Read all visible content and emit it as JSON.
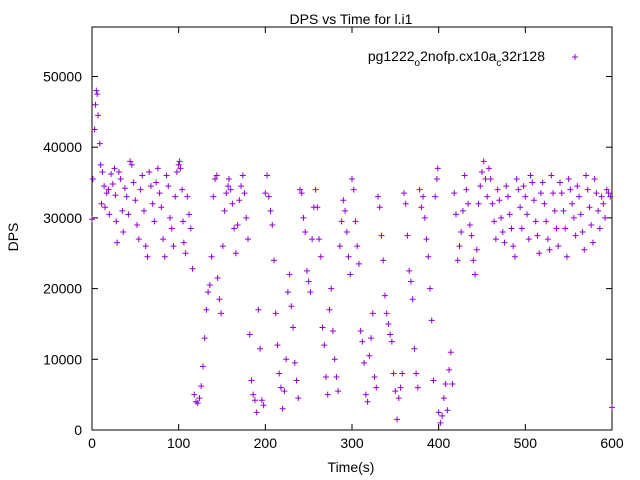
{
  "chart_data": {
    "type": "scatter",
    "title": "DPS vs Time for l.i1",
    "xlabel": "Time(s)",
    "ylabel": "DPS",
    "xlim": [
      0,
      600
    ],
    "ylim": [
      0,
      57000
    ],
    "xticks": [
      0,
      100,
      200,
      300,
      400,
      500,
      600
    ],
    "yticks": [
      0,
      10000,
      20000,
      30000,
      40000,
      50000
    ],
    "legend_position": "top-right",
    "series": [
      {
        "name": "pg1222_o2nofp.cx10a_c32r128",
        "legend_label": {
          "base": "pg1222",
          "sub1": "o",
          "mid": "2nofp.cx10a",
          "sub2": "c",
          "end": "32r128"
        },
        "color": "#9400d3",
        "marker": "+",
        "points": [
          [
            0,
            29800
          ],
          [
            1,
            35500
          ],
          [
            3,
            42500
          ],
          [
            4,
            46000
          ],
          [
            5,
            48000
          ],
          [
            6,
            47500
          ],
          [
            7,
            44500
          ],
          [
            9,
            40500
          ],
          [
            10,
            37500
          ],
          [
            11,
            32000
          ],
          [
            12,
            36500
          ],
          [
            14,
            34500
          ],
          [
            15,
            31500
          ],
          [
            17,
            33500
          ],
          [
            19,
            34000
          ],
          [
            20,
            30500
          ],
          [
            22,
            36200
          ],
          [
            24,
            34800
          ],
          [
            26,
            37000
          ],
          [
            27,
            33200
          ],
          [
            28,
            29500
          ],
          [
            29,
            26500
          ],
          [
            31,
            36500
          ],
          [
            33,
            35500
          ],
          [
            35,
            31000
          ],
          [
            36,
            28000
          ],
          [
            38,
            34200
          ],
          [
            40,
            33000
          ],
          [
            42,
            30500
          ],
          [
            44,
            38000
          ],
          [
            46,
            37500
          ],
          [
            48,
            35000
          ],
          [
            50,
            32500
          ],
          [
            52,
            29000
          ],
          [
            54,
            27000
          ],
          [
            56,
            34000
          ],
          [
            58,
            36000
          ],
          [
            60,
            31000
          ],
          [
            62,
            26000
          ],
          [
            64,
            24500
          ],
          [
            66,
            36500
          ],
          [
            68,
            34500
          ],
          [
            70,
            32000
          ],
          [
            72,
            29500
          ],
          [
            74,
            35000
          ],
          [
            76,
            37000
          ],
          [
            78,
            33500
          ],
          [
            80,
            31500
          ],
          [
            82,
            27000
          ],
          [
            84,
            24500
          ],
          [
            86,
            36000
          ],
          [
            88,
            34500
          ],
          [
            90,
            30000
          ],
          [
            92,
            28500
          ],
          [
            94,
            26000
          ],
          [
            96,
            33000
          ],
          [
            98,
            36500
          ],
          [
            100,
            37500
          ],
          [
            101,
            38000
          ],
          [
            102,
            37000
          ],
          [
            104,
            34000
          ],
          [
            105,
            29500
          ],
          [
            106,
            26500
          ],
          [
            108,
            25000
          ],
          [
            110,
            33000
          ],
          [
            112,
            30500
          ],
          [
            114,
            28500
          ],
          [
            116,
            22800
          ],
          [
            118,
            5000
          ],
          [
            120,
            4000
          ],
          [
            122,
            3800
          ],
          [
            124,
            4500
          ],
          [
            126,
            6200
          ],
          [
            128,
            9000
          ],
          [
            130,
            13000
          ],
          [
            132,
            17000
          ],
          [
            134,
            19500
          ],
          [
            136,
            20500
          ],
          [
            138,
            24500
          ],
          [
            140,
            33000
          ],
          [
            142,
            35500
          ],
          [
            144,
            36000
          ],
          [
            145,
            21500
          ],
          [
            147,
            18500
          ],
          [
            149,
            16500
          ],
          [
            151,
            26000
          ],
          [
            153,
            31000
          ],
          [
            155,
            33500
          ],
          [
            157,
            34500
          ],
          [
            158,
            35500
          ],
          [
            160,
            34000
          ],
          [
            162,
            32000
          ],
          [
            164,
            28500
          ],
          [
            166,
            25000
          ],
          [
            168,
            29000
          ],
          [
            170,
            32500
          ],
          [
            172,
            34500
          ],
          [
            174,
            36000
          ],
          [
            176,
            33500
          ],
          [
            178,
            30000
          ],
          [
            180,
            27000
          ],
          [
            182,
            13500
          ],
          [
            184,
            7000
          ],
          [
            186,
            5000
          ],
          [
            188,
            4200
          ],
          [
            190,
            2500
          ],
          [
            192,
            17000
          ],
          [
            194,
            11500
          ],
          [
            196,
            4200
          ],
          [
            198,
            3500
          ],
          [
            200,
            33500
          ],
          [
            202,
            36000
          ],
          [
            204,
            33000
          ],
          [
            206,
            31000
          ],
          [
            208,
            29000
          ],
          [
            210,
            24000
          ],
          [
            212,
            16500
          ],
          [
            214,
            12000
          ],
          [
            216,
            8000
          ],
          [
            218,
            6000
          ],
          [
            220,
            3000
          ],
          [
            222,
            5500
          ],
          [
            224,
            10000
          ],
          [
            226,
            19500
          ],
          [
            228,
            22000
          ],
          [
            230,
            17500
          ],
          [
            232,
            14500
          ],
          [
            234,
            9500
          ],
          [
            236,
            7000
          ],
          [
            238,
            4500
          ],
          [
            240,
            34000
          ],
          [
            242,
            33500
          ],
          [
            244,
            30000
          ],
          [
            246,
            28000
          ],
          [
            248,
            22500
          ],
          [
            250,
            21000
          ],
          [
            252,
            19500
          ],
          [
            254,
            27000
          ],
          [
            256,
            31500
          ],
          [
            258,
            34000
          ],
          [
            260,
            31500
          ],
          [
            262,
            27000
          ],
          [
            264,
            24500
          ],
          [
            266,
            14500
          ],
          [
            268,
            12000
          ],
          [
            270,
            7500
          ],
          [
            272,
            5000
          ],
          [
            274,
            17000
          ],
          [
            276,
            20000
          ],
          [
            278,
            14000
          ],
          [
            280,
            10000
          ],
          [
            282,
            7500
          ],
          [
            284,
            5500
          ],
          [
            286,
            26000
          ],
          [
            288,
            29500
          ],
          [
            290,
            32500
          ],
          [
            292,
            31000
          ],
          [
            294,
            28000
          ],
          [
            296,
            24500
          ],
          [
            298,
            22000
          ],
          [
            300,
            35500
          ],
          [
            302,
            34000
          ],
          [
            304,
            29500
          ],
          [
            306,
            26000
          ],
          [
            308,
            23500
          ],
          [
            310,
            14000
          ],
          [
            312,
            12500
          ],
          [
            314,
            9500
          ],
          [
            316,
            5000
          ],
          [
            318,
            4000
          ],
          [
            320,
            10500
          ],
          [
            322,
            13000
          ],
          [
            324,
            16500
          ],
          [
            326,
            7500
          ],
          [
            328,
            6000
          ],
          [
            330,
            33000
          ],
          [
            332,
            31500
          ],
          [
            334,
            27500
          ],
          [
            336,
            24000
          ],
          [
            338,
            19000
          ],
          [
            340,
            16500
          ],
          [
            342,
            15000
          ],
          [
            344,
            13500
          ],
          [
            346,
            12500
          ],
          [
            348,
            8000
          ],
          [
            350,
            5500
          ],
          [
            352,
            1500
          ],
          [
            354,
            4500
          ],
          [
            356,
            6000
          ],
          [
            358,
            8000
          ],
          [
            360,
            33500
          ],
          [
            362,
            32000
          ],
          [
            364,
            27500
          ],
          [
            366,
            22500
          ],
          [
            368,
            21000
          ],
          [
            370,
            18500
          ],
          [
            372,
            11500
          ],
          [
            374,
            8000
          ],
          [
            376,
            6000
          ],
          [
            378,
            34000
          ],
          [
            380,
            31500
          ],
          [
            382,
            33000
          ],
          [
            384,
            30000
          ],
          [
            386,
            27000
          ],
          [
            388,
            24500
          ],
          [
            390,
            20000
          ],
          [
            392,
            15500
          ],
          [
            394,
            7000
          ],
          [
            396,
            33000
          ],
          [
            398,
            35500
          ],
          [
            399,
            37000
          ],
          [
            400,
            2500
          ],
          [
            402,
            1000
          ],
          [
            404,
            2000
          ],
          [
            406,
            4500
          ],
          [
            408,
            6500
          ],
          [
            410,
            2800
          ],
          [
            412,
            8500
          ],
          [
            414,
            11000
          ],
          [
            416,
            6500
          ],
          [
            418,
            33500
          ],
          [
            420,
            30500
          ],
          [
            422,
            24000
          ],
          [
            424,
            26000
          ],
          [
            426,
            28000
          ],
          [
            428,
            31000
          ],
          [
            430,
            36000
          ],
          [
            432,
            34000
          ],
          [
            434,
            32000
          ],
          [
            436,
            29000
          ],
          [
            438,
            27500
          ],
          [
            440,
            24000
          ],
          [
            442,
            22000
          ],
          [
            444,
            25500
          ],
          [
            446,
            32000
          ],
          [
            448,
            34500
          ],
          [
            450,
            36500
          ],
          [
            452,
            38000
          ],
          [
            454,
            35500
          ],
          [
            456,
            33000
          ],
          [
            458,
            37000
          ],
          [
            460,
            35500
          ],
          [
            462,
            32000
          ],
          [
            464,
            29500
          ],
          [
            466,
            27000
          ],
          [
            468,
            34000
          ],
          [
            470,
            32500
          ],
          [
            472,
            30000
          ],
          [
            474,
            28000
          ],
          [
            476,
            26500
          ],
          [
            478,
            34500
          ],
          [
            480,
            33000
          ],
          [
            482,
            30500
          ],
          [
            484,
            28500
          ],
          [
            486,
            26000
          ],
          [
            488,
            24500
          ],
          [
            490,
            35500
          ],
          [
            492,
            34000
          ],
          [
            494,
            31500
          ],
          [
            496,
            28500
          ],
          [
            498,
            34500
          ],
          [
            500,
            33000
          ],
          [
            502,
            30500
          ],
          [
            504,
            27000
          ],
          [
            506,
            36000
          ],
          [
            508,
            35000
          ],
          [
            510,
            32500
          ],
          [
            512,
            29500
          ],
          [
            514,
            27500
          ],
          [
            516,
            25000
          ],
          [
            518,
            33500
          ],
          [
            520,
            35000
          ],
          [
            522,
            32000
          ],
          [
            524,
            29500
          ],
          [
            526,
            27000
          ],
          [
            528,
            25500
          ],
          [
            530,
            36000
          ],
          [
            532,
            33500
          ],
          [
            534,
            31000
          ],
          [
            536,
            28500
          ],
          [
            538,
            26000
          ],
          [
            540,
            35000
          ],
          [
            542,
            33500
          ],
          [
            544,
            31000
          ],
          [
            546,
            28500
          ],
          [
            548,
            24500
          ],
          [
            550,
            35500
          ],
          [
            552,
            34000
          ],
          [
            554,
            32000
          ],
          [
            556,
            30000
          ],
          [
            558,
            27500
          ],
          [
            560,
            34500
          ],
          [
            562,
            33000
          ],
          [
            564,
            30500
          ],
          [
            566,
            28000
          ],
          [
            568,
            25500
          ],
          [
            570,
            36000
          ],
          [
            572,
            34000
          ],
          [
            574,
            31500
          ],
          [
            576,
            29000
          ],
          [
            578,
            26500
          ],
          [
            580,
            35500
          ],
          [
            582,
            33500
          ],
          [
            584,
            31000
          ],
          [
            586,
            28500
          ],
          [
            588,
            33000
          ],
          [
            590,
            32000
          ],
          [
            592,
            30000
          ],
          [
            594,
            34000
          ],
          [
            596,
            33500
          ],
          [
            598,
            33000
          ],
          [
            600,
            3200
          ]
        ]
      }
    ]
  }
}
